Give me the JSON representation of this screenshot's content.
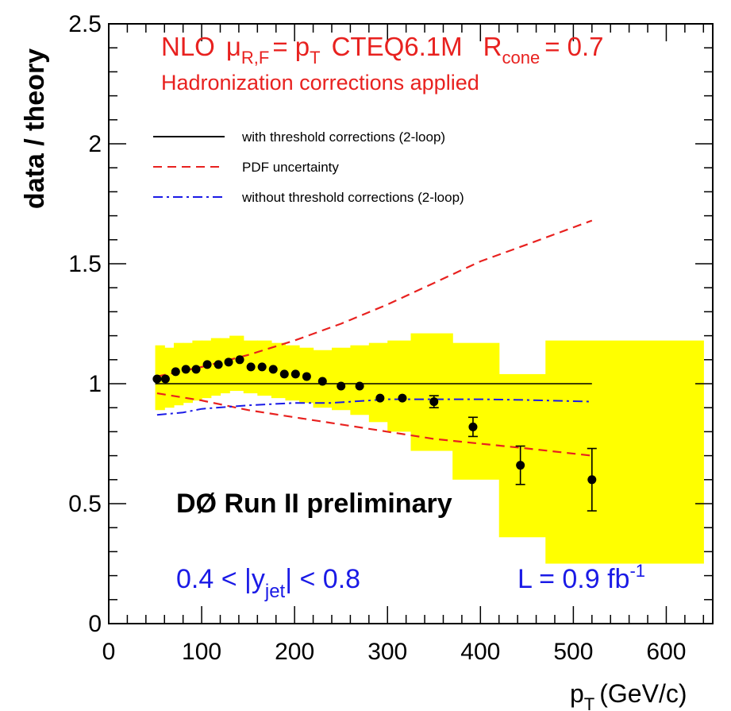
{
  "chart_data": {
    "type": "scatter",
    "title_parts": {
      "nlo": "NLO",
      "mu": "μ",
      "mu_sub": "R,F",
      "eq": "= p",
      "pt_sub": "T",
      "pdf": "CTEQ6.1M",
      "r": "R",
      "r_sub": "cone",
      "r_val": "= 0.7"
    },
    "subtitle": "Hadronization corrections applied",
    "ylabel": "data / theory",
    "xlabel": {
      "main": "p",
      "sub": "T",
      "unit": "(GeV/c)"
    },
    "xlim": [
      0,
      650
    ],
    "ylim": [
      0,
      2.5
    ],
    "xticks": [
      0,
      100,
      200,
      300,
      400,
      500,
      600
    ],
    "yticks": [
      0,
      0.5,
      1,
      1.5,
      2,
      2.5
    ],
    "ytick_labels": [
      "0",
      "0.5",
      "1",
      "1.5",
      "2",
      "2.5"
    ],
    "xtick_labels": [
      "0",
      "100",
      "200",
      "300",
      "400",
      "500",
      "600"
    ],
    "legend": [
      {
        "label": "with threshold corrections (2-loop)",
        "style": "solid",
        "color": "#000000"
      },
      {
        "label": "PDF uncertainty",
        "style": "dashed",
        "color": "#e8211f"
      },
      {
        "label": "without threshold corrections (2-loop)",
        "style": "dashdot",
        "color": "#1a1ae6"
      }
    ],
    "experiment_label": "DØ Run II preliminary",
    "rapidity_label": {
      "pre": "0.4 < |y",
      "sub": "jet",
      "post": "| < 0.8"
    },
    "lumi_label": {
      "pre": "L = 0.9 fb",
      "sup": "-1"
    },
    "colors": {
      "band": "#ffff00",
      "pdf": "#e8211f",
      "nothreshold": "#1a1ae6",
      "data": "#000000"
    },
    "data_points": [
      {
        "x": 52,
        "y": 1.02,
        "err": 0.0
      },
      {
        "x": 61,
        "y": 1.02,
        "err": 0.0
      },
      {
        "x": 72,
        "y": 1.05,
        "err": 0.0
      },
      {
        "x": 83,
        "y": 1.06,
        "err": 0.0
      },
      {
        "x": 94,
        "y": 1.06,
        "err": 0.0
      },
      {
        "x": 106,
        "y": 1.08,
        "err": 0.0
      },
      {
        "x": 118,
        "y": 1.08,
        "err": 0.0
      },
      {
        "x": 129,
        "y": 1.09,
        "err": 0.0
      },
      {
        "x": 141,
        "y": 1.1,
        "err": 0.0
      },
      {
        "x": 153,
        "y": 1.07,
        "err": 0.0
      },
      {
        "x": 165,
        "y": 1.07,
        "err": 0.0
      },
      {
        "x": 177,
        "y": 1.06,
        "err": 0.0
      },
      {
        "x": 189,
        "y": 1.04,
        "err": 0.0
      },
      {
        "x": 201,
        "y": 1.04,
        "err": 0.0
      },
      {
        "x": 213,
        "y": 1.03,
        "err": 0.0
      },
      {
        "x": 230,
        "y": 1.01,
        "err": 0.0
      },
      {
        "x": 250,
        "y": 0.99,
        "err": 0.0
      },
      {
        "x": 270,
        "y": 0.99,
        "err": 0.0
      },
      {
        "x": 292,
        "y": 0.94,
        "err": 0.0
      },
      {
        "x": 316,
        "y": 0.94,
        "err": 0.0
      },
      {
        "x": 350,
        "y": 0.925,
        "err": 0.025
      },
      {
        "x": 392,
        "y": 0.82,
        "err": 0.04
      },
      {
        "x": 443,
        "y": 0.66,
        "err": 0.08
      },
      {
        "x": 520,
        "y": 0.6,
        "err": 0.13
      }
    ],
    "systematic_band": [
      {
        "x0": 50,
        "x1": 60,
        "lo": 0.89,
        "hi": 1.16
      },
      {
        "x0": 60,
        "x1": 70,
        "lo": 0.9,
        "hi": 1.15
      },
      {
        "x0": 70,
        "x1": 80,
        "lo": 0.91,
        "hi": 1.17
      },
      {
        "x0": 80,
        "x1": 90,
        "lo": 0.92,
        "hi": 1.17
      },
      {
        "x0": 90,
        "x1": 100,
        "lo": 0.93,
        "hi": 1.18
      },
      {
        "x0": 100,
        "x1": 110,
        "lo": 0.94,
        "hi": 1.18
      },
      {
        "x0": 110,
        "x1": 120,
        "lo": 0.95,
        "hi": 1.19
      },
      {
        "x0": 120,
        "x1": 130,
        "lo": 0.96,
        "hi": 1.19
      },
      {
        "x0": 130,
        "x1": 145,
        "lo": 0.97,
        "hi": 1.2
      },
      {
        "x0": 145,
        "x1": 160,
        "lo": 0.96,
        "hi": 1.18
      },
      {
        "x0": 160,
        "x1": 175,
        "lo": 0.95,
        "hi": 1.18
      },
      {
        "x0": 175,
        "x1": 190,
        "lo": 0.94,
        "hi": 1.17
      },
      {
        "x0": 190,
        "x1": 205,
        "lo": 0.93,
        "hi": 1.16
      },
      {
        "x0": 205,
        "x1": 220,
        "lo": 0.92,
        "hi": 1.15
      },
      {
        "x0": 220,
        "x1": 240,
        "lo": 0.9,
        "hi": 1.14
      },
      {
        "x0": 240,
        "x1": 260,
        "lo": 0.89,
        "hi": 1.15
      },
      {
        "x0": 260,
        "x1": 280,
        "lo": 0.87,
        "hi": 1.16
      },
      {
        "x0": 280,
        "x1": 300,
        "lo": 0.84,
        "hi": 1.17
      },
      {
        "x0": 300,
        "x1": 325,
        "lo": 0.8,
        "hi": 1.18
      },
      {
        "x0": 325,
        "x1": 370,
        "lo": 0.72,
        "hi": 1.21
      },
      {
        "x0": 370,
        "x1": 420,
        "lo": 0.6,
        "hi": 1.17
      },
      {
        "x0": 420,
        "x1": 470,
        "lo": 0.36,
        "hi": 1.04
      },
      {
        "x0": 470,
        "x1": 640,
        "lo": 0.25,
        "hi": 1.18
      }
    ],
    "threshold_line": {
      "x": [
        50,
        520
      ],
      "y": [
        1.0,
        1.0
      ]
    },
    "pdf_upper": [
      [
        52,
        1.03
      ],
      [
        100,
        1.07
      ],
      [
        150,
        1.12
      ],
      [
        200,
        1.18
      ],
      [
        250,
        1.25
      ],
      [
        300,
        1.33
      ],
      [
        350,
        1.42
      ],
      [
        400,
        1.51
      ],
      [
        450,
        1.58
      ],
      [
        520,
        1.68
      ]
    ],
    "pdf_lower": [
      [
        52,
        0.96
      ],
      [
        100,
        0.93
      ],
      [
        150,
        0.89
      ],
      [
        200,
        0.86
      ],
      [
        250,
        0.83
      ],
      [
        300,
        0.8
      ],
      [
        350,
        0.77
      ],
      [
        400,
        0.75
      ],
      [
        450,
        0.73
      ],
      [
        520,
        0.7
      ]
    ],
    "no_threshold": [
      [
        52,
        0.87
      ],
      [
        80,
        0.88
      ],
      [
        100,
        0.895
      ],
      [
        150,
        0.91
      ],
      [
        200,
        0.92
      ],
      [
        240,
        0.92
      ],
      [
        300,
        0.935
      ],
      [
        350,
        0.935
      ],
      [
        400,
        0.935
      ],
      [
        450,
        0.932
      ],
      [
        520,
        0.925
      ]
    ]
  }
}
